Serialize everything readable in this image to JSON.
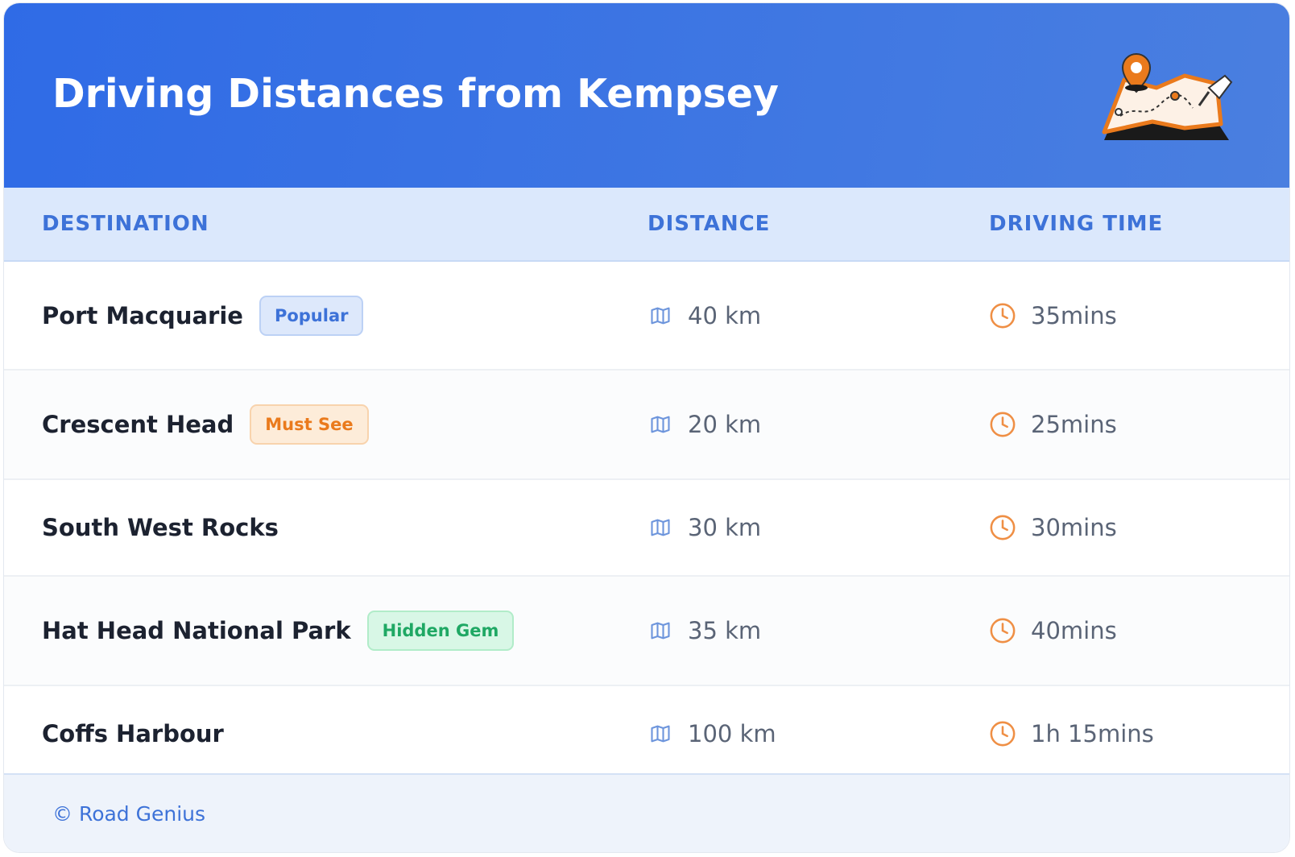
{
  "header": {
    "title": "Driving Distances from Kempsey"
  },
  "table": {
    "columns": [
      "DESTINATION",
      "DISTANCE",
      "DRIVING TIME"
    ],
    "rows": [
      {
        "destination": "Port Macquarie",
        "badge": {
          "text": "Popular",
          "color": "blue"
        },
        "distance": "40 km",
        "time": "35mins"
      },
      {
        "destination": "Crescent Head",
        "badge": {
          "text": "Must See",
          "color": "orange"
        },
        "distance": "20 km",
        "time": "25mins"
      },
      {
        "destination": "South West Rocks",
        "distance": "30 km",
        "time": "30mins"
      },
      {
        "destination": "Hat Head National Park",
        "badge": {
          "text": "Hidden Gem",
          "color": "green"
        },
        "distance": "35 km",
        "time": "40mins"
      },
      {
        "destination": "Coffs Harbour",
        "distance": "100 km",
        "time": "1h 15mins"
      }
    ]
  },
  "footer": {
    "text": "© Road Genius"
  }
}
